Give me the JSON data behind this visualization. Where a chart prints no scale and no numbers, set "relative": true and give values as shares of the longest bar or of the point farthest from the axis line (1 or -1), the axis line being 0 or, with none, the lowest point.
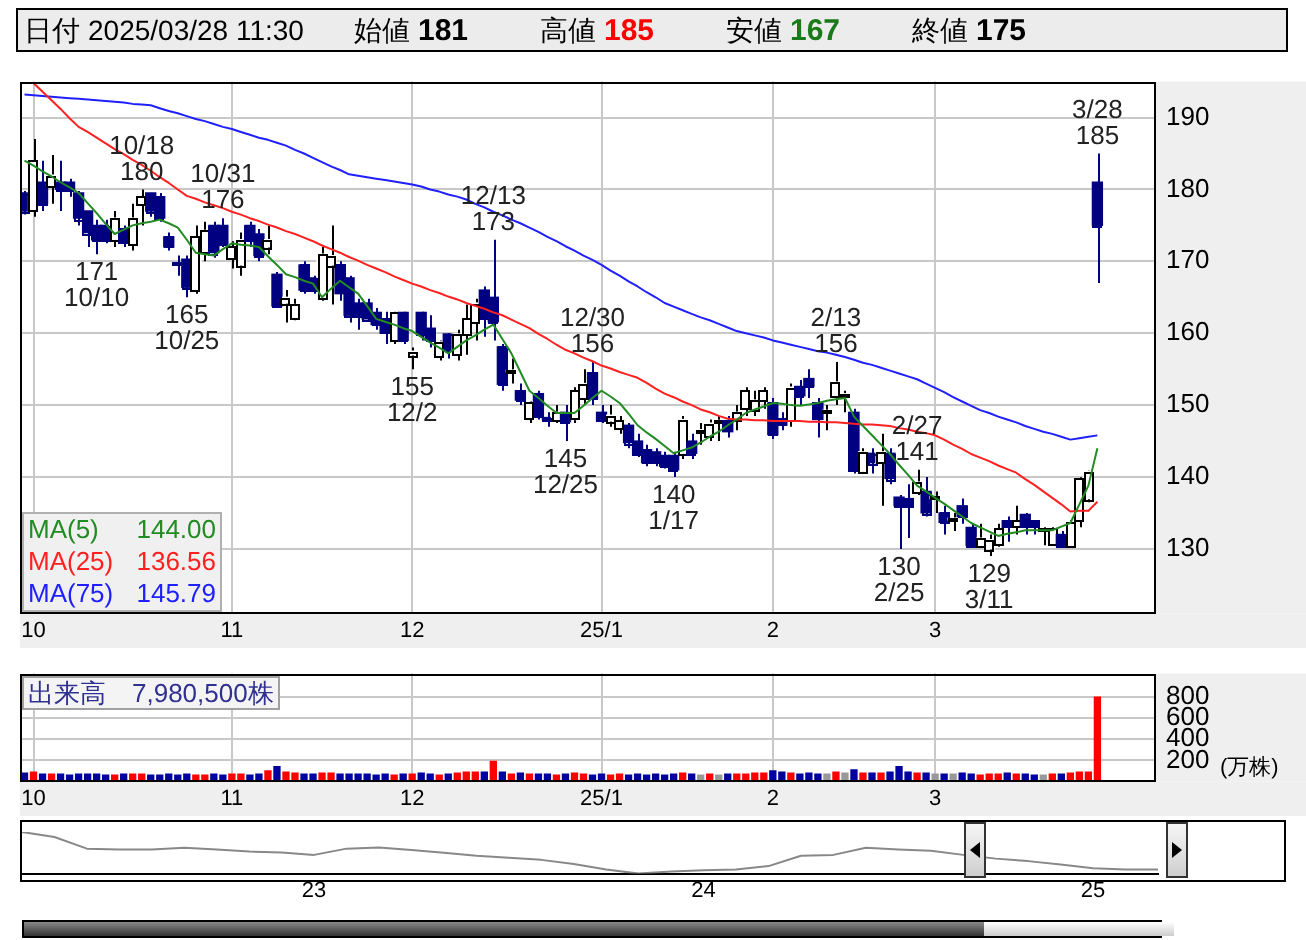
{
  "chart_data": [
    {
      "type": "other",
      "annotations": [
        "日付",
        "2025/03/28 11:30",
        "始値",
        "181",
        "高値",
        "185",
        "安値",
        "167",
        "終値",
        "175"
      ]
    },
    {
      "type": "candlestick",
      "categories": [
        null,
        "10",
        null,
        null,
        null,
        null,
        null,
        null,
        null,
        null,
        null,
        null,
        null,
        null,
        null,
        null,
        null,
        null,
        null,
        null,
        null,
        null,
        null,
        "11",
        null,
        null,
        null,
        null,
        null,
        null,
        null,
        null,
        null,
        null,
        null,
        null,
        null,
        null,
        null,
        null,
        null,
        null,
        null,
        "12",
        null,
        null,
        null,
        null,
        null,
        null,
        null,
        null,
        null,
        null,
        null,
        null,
        null,
        null,
        null,
        null,
        null,
        null,
        null,
        null,
        "25/1",
        null,
        null,
        null,
        null,
        null,
        null,
        null,
        null,
        null,
        null,
        null,
        null,
        null,
        null,
        null,
        null,
        null,
        null,
        "2",
        null,
        null,
        null,
        null,
        null,
        null,
        null,
        null,
        null,
        null,
        null,
        null,
        null,
        null,
        null,
        null,
        null,
        "3",
        null,
        null,
        null,
        null,
        null,
        null,
        null,
        null,
        null,
        null,
        null,
        null,
        null,
        null,
        null,
        null,
        null,
        null
      ],
      "ohlc": [
        [
          179.5,
          179.8,
          176.5,
          177
        ],
        [
          177,
          187,
          176.2,
          184
        ],
        [
          181,
          184,
          177,
          178
        ],
        [
          180.5,
          184.8,
          178,
          182
        ],
        [
          181,
          184,
          177,
          180
        ],
        [
          181,
          181.5,
          179,
          180
        ],
        [
          179.5,
          179.8,
          175,
          176
        ],
        [
          177,
          177,
          172,
          174
        ],
        [
          175,
          175.8,
          171,
          173
        ],
        [
          175,
          175.8,
          172.5,
          173
        ],
        [
          173,
          177,
          172,
          176
        ],
        [
          174.5,
          175,
          172,
          172.5
        ],
        [
          172.5,
          178,
          171.5,
          176
        ],
        [
          178,
          180,
          175,
          179
        ],
        [
          179.5,
          179.5,
          176.2,
          177
        ],
        [
          179,
          179.5,
          175.5,
          176
        ],
        [
          173.4,
          174,
          171.5,
          172
        ],
        [
          169.8,
          170.8,
          168,
          169.5
        ],
        [
          170.3,
          170.8,
          165,
          166.4
        ],
        [
          166,
          175,
          165.5,
          173.4
        ],
        [
          171.2,
          175.5,
          170,
          174.3
        ],
        [
          175,
          175.5,
          170.5,
          171.2
        ],
        [
          175,
          176,
          172,
          172.5
        ],
        [
          170.3,
          172.8,
          169,
          172
        ],
        [
          169.5,
          174,
          168,
          173
        ],
        [
          175,
          175.5,
          172,
          173
        ],
        [
          173.8,
          174.5,
          170,
          170.8
        ],
        [
          172,
          175,
          171,
          173
        ],
        [
          168.2,
          168.5,
          163.5,
          163.8
        ],
        [
          164.2,
          166,
          161.5,
          165
        ],
        [
          162,
          164.8,
          161.8,
          164
        ],
        [
          169.5,
          170,
          165.5,
          166
        ],
        [
          167.7,
          168,
          165.5,
          166
        ],
        [
          165,
          172,
          164.5,
          171
        ],
        [
          169.5,
          175,
          164,
          170.8
        ],
        [
          169.5,
          170,
          164.5,
          165.5
        ],
        [
          167.7,
          168,
          161.5,
          162.5
        ],
        [
          164.2,
          164.8,
          160.5,
          162.5
        ],
        [
          164.2,
          164.8,
          161.8,
          162
        ],
        [
          162.9,
          163.5,
          160.5,
          161.2
        ],
        [
          162,
          163,
          158.5,
          160
        ],
        [
          159,
          163,
          158.5,
          162.9
        ],
        [
          162.9,
          163,
          158.5,
          159
        ],
        [
          157,
          158,
          155,
          157.5
        ],
        [
          162.9,
          163,
          159,
          159.9
        ],
        [
          160.7,
          162.5,
          158,
          159
        ],
        [
          156.8,
          159,
          156.2,
          158.8
        ],
        [
          159.9,
          160,
          156.5,
          157.7
        ],
        [
          157.2,
          160.5,
          156.2,
          159.9
        ],
        [
          159.9,
          164,
          157,
          162
        ],
        [
          161.6,
          164.8,
          159,
          164.2
        ],
        [
          166,
          166.5,
          159.5,
          162
        ],
        [
          165,
          173,
          159,
          161.6
        ],
        [
          158.1,
          158.5,
          152,
          152.9
        ],
        [
          154.6,
          156.5,
          153,
          154.8
        ],
        [
          152,
          153,
          150,
          150.7
        ],
        [
          148.1,
          150.5,
          147.5,
          150.3
        ],
        [
          151.6,
          152,
          148,
          148.5
        ],
        [
          148.1,
          149,
          147,
          148
        ],
        [
          148,
          150,
          147.5,
          149
        ],
        [
          149,
          150,
          145,
          147.7
        ],
        [
          148,
          152.5,
          147.5,
          152
        ],
        [
          151,
          155,
          150,
          153
        ],
        [
          154.5,
          156,
          150,
          151
        ],
        [
          149,
          150,
          147.5,
          147.8
        ],
        [
          147.8,
          150,
          147,
          148.6
        ],
        [
          146.7,
          148.5,
          146,
          147.8
        ],
        [
          147.2,
          147.5,
          144,
          144.8
        ],
        [
          145,
          146,
          142.8,
          143.2
        ],
        [
          143.8,
          144.5,
          141.5,
          142
        ],
        [
          143.5,
          144,
          141.5,
          142
        ],
        [
          143,
          143.5,
          141.2,
          141.5
        ],
        [
          143,
          143.5,
          140,
          141
        ],
        [
          143.3,
          148.5,
          142.5,
          148
        ],
        [
          145,
          146,
          142.5,
          143.3
        ],
        [
          146.3,
          147.5,
          144.5,
          146.3
        ],
        [
          145.8,
          148,
          145,
          147.5
        ],
        [
          147.6,
          148.5,
          145,
          147.6
        ],
        [
          147.8,
          148.5,
          145.5,
          146.3
        ],
        [
          147.8,
          150,
          146.5,
          149
        ],
        [
          149.4,
          152.5,
          148.5,
          152
        ],
        [
          149.4,
          152,
          148.5,
          150.7
        ],
        [
          150.7,
          152.5,
          149.5,
          152
        ],
        [
          150.3,
          151,
          145.3,
          145.9
        ],
        [
          148.1,
          149,
          146.5,
          147.2
        ],
        [
          148,
          153,
          147,
          152.5
        ],
        [
          152.6,
          153.5,
          150,
          151.3
        ],
        [
          153.7,
          155,
          151,
          152.6
        ],
        [
          150.3,
          151,
          145.5,
          148
        ],
        [
          149,
          150,
          146.5,
          149
        ],
        [
          151.3,
          156,
          150,
          153.2
        ],
        [
          151.3,
          152,
          149,
          151.3
        ],
        [
          149,
          149.5,
          140.5,
          140.8
        ],
        [
          140.8,
          144,
          140.5,
          143.5
        ],
        [
          143.3,
          144,
          140.5,
          142
        ],
        [
          142,
          146,
          136,
          143.5
        ],
        [
          143.3,
          144,
          139,
          139.8
        ],
        [
          137.2,
          137.5,
          130,
          136
        ],
        [
          137,
          139,
          131.5,
          136
        ],
        [
          138,
          141,
          137.5,
          139.3
        ],
        [
          138,
          140,
          134.5,
          135
        ],
        [
          137,
          138,
          135,
          137
        ],
        [
          135,
          136,
          132,
          133.7
        ],
        [
          134,
          135,
          132.5,
          134
        ],
        [
          136,
          137,
          133.5,
          134.5
        ],
        [
          133,
          133.5,
          130.3,
          130.5
        ],
        [
          130.5,
          133.5,
          130.3,
          131.5
        ],
        [
          130,
          132,
          129,
          131.3
        ],
        [
          130.5,
          133.5,
          130.3,
          132.8
        ],
        [
          133.9,
          134.5,
          131,
          133
        ],
        [
          133,
          136,
          132,
          133.9
        ],
        [
          134.8,
          135,
          132,
          133.1
        ],
        [
          133.9,
          134,
          132,
          133
        ],
        [
          132.5,
          133,
          130.5,
          132.5
        ],
        [
          130.5,
          133,
          130.5,
          132.8
        ],
        [
          132,
          132.5,
          130.2,
          130.4
        ],
        [
          130.5,
          134,
          130.5,
          133.7
        ],
        [
          133.9,
          140,
          133,
          139.8
        ],
        [
          137,
          140.9,
          136.5,
          140.8
        ],
        [
          181,
          185,
          167,
          175
        ]
      ],
      "colors": [
        "#000080",
        "#ffffff",
        "#000080",
        "#ffffff",
        "#000080",
        "#000080",
        "#000080",
        "#000080",
        "#000080",
        "#000080",
        "#ffffff",
        "#000080",
        "#ffffff",
        "#ffffff",
        "#000080",
        "#000080",
        "#000080",
        "#000080",
        "#000080",
        "#ffffff",
        "#ffffff",
        "#000080",
        "#000080",
        "#ffffff",
        "#ffffff",
        "#000080",
        "#000080",
        "#ffffff",
        "#000080",
        "#ffffff",
        "#ffffff",
        "#000080",
        "#000080",
        "#ffffff",
        "#ffffff",
        "#000080",
        "#000080",
        "#000080",
        "#000080",
        "#000080",
        "#000080",
        "#ffffff",
        "#000080",
        "#ffffff",
        "#000080",
        "#000080",
        "#ffffff",
        "#000080",
        "#ffffff",
        "#ffffff",
        "#ffffff",
        "#000080",
        "#000080",
        "#000080",
        "#ffffff",
        "#000080",
        "#ffffff",
        "#000080",
        "#000080",
        "#ffffff",
        "#000080",
        "#ffffff",
        "#ffffff",
        "#000080",
        "#000080",
        "#ffffff",
        "#ffffff",
        "#000080",
        "#000080",
        "#000080",
        "#000080",
        "#000080",
        "#000080",
        "#ffffff",
        "#000080",
        "#ffffff",
        "#ffffff",
        "#ffffff",
        "#000080",
        "#ffffff",
        "#ffffff",
        "#ffffff",
        "#ffffff",
        "#000080",
        "#000080",
        "#ffffff",
        "#000080",
        "#000080",
        "#000080",
        "#ffffff",
        "#ffffff",
        "#ffffff",
        "#000080",
        "#ffffff",
        "#000080",
        "#ffffff",
        "#000080",
        "#000080",
        "#000080",
        "#ffffff",
        "#000080",
        "#ffffff",
        "#000080",
        "#ffffff",
        "#000080",
        "#000080",
        "#ffffff",
        "#ffffff",
        "#ffffff",
        "#000080",
        "#ffffff",
        "#000080",
        "#000080",
        "#ffffff",
        "#ffffff",
        "#000080",
        "#ffffff",
        "#ffffff",
        "#ffffff",
        "#000080"
      ],
      "series": [
        {
          "type": "line",
          "name": "MA(5) 144.00",
          "color": "#228b22",
          "values": [
            184,
            183.3,
            182.5,
            181.8,
            181,
            180.3,
            179.5,
            178.1,
            176.7,
            175.2,
            173.8,
            174.4,
            175,
            175.3,
            175.5,
            175.8,
            175.3,
            174.7,
            173,
            171.2,
            171,
            170.8,
            171.7,
            172.5,
            172.3,
            172.2,
            172,
            170.7,
            169.5,
            168.2,
            167.8,
            167.3,
            166.9,
            165,
            166.2,
            167.3,
            166.4,
            165.5,
            163.8,
            162,
            161.6,
            161.2,
            160.7,
            160.3,
            159.5,
            158.7,
            158,
            157.2,
            158.1,
            159,
            159.7,
            160.5,
            161.2,
            159.2,
            157.2,
            154.6,
            152,
            151,
            149.9,
            148.9,
            148.9,
            148.9,
            149.9,
            151,
            152,
            151.2,
            150.3,
            148.8,
            147.2,
            146.2,
            145.3,
            144.3,
            143.3,
            143.7,
            144.1,
            144.8,
            145.6,
            146.3,
            147.2,
            148,
            148.9,
            149.4,
            149.8,
            150.3,
            150.2,
            150,
            149.9,
            150.1,
            150.3,
            150.6,
            150.8,
            151,
            148.4,
            147.1,
            145.8,
            144.5,
            143.2,
            141.7,
            140.3,
            138.8,
            138,
            137.1,
            136.3,
            135.4,
            134.5,
            133.6,
            133,
            132.4,
            131.8,
            132.1,
            132.3,
            132.6,
            132.6,
            132.6,
            132.6,
            133.1,
            133.6,
            136.2,
            138.8,
            144.0
          ]
        },
        {
          "type": "line",
          "name": "MA(25) 136.56",
          "color": "#ff2020",
          "values": [
            null,
            194.8,
            193.6,
            192.4,
            191.2,
            189.9,
            188.7,
            188,
            187.2,
            186.4,
            185.6,
            184.9,
            184.1,
            183.4,
            182.6,
            181.7,
            180.9,
            180,
            179.1,
            178.7,
            178.2,
            177.8,
            177.4,
            176.9,
            176.5,
            176,
            175.6,
            175.1,
            174.7,
            174.2,
            173.8,
            173.3,
            172.8,
            172.2,
            171.7,
            171.2,
            170.6,
            170.1,
            169.5,
            169,
            168.5,
            167.9,
            167.4,
            166.9,
            166.5,
            166,
            165.6,
            165.1,
            164.7,
            164.2,
            163.8,
            163.4,
            162.9,
            162.5,
            161.9,
            161.3,
            160.7,
            159.9,
            159.2,
            158.4,
            157.7,
            157.2,
            156.6,
            156.1,
            155.5,
            155.1,
            154.6,
            154.2,
            153.8,
            153.1,
            152.3,
            151.6,
            151.1,
            150.5,
            150,
            149.4,
            149,
            148.5,
            148.1,
            148,
            148,
            147.9,
            147.9,
            147.8,
            147.8,
            147.8,
            147.8,
            147.7,
            147.7,
            147.6,
            147.6,
            147.5,
            147.4,
            147.3,
            147.3,
            147.2,
            147.1,
            146.8,
            146.6,
            146.3,
            146.1,
            145.8,
            145.2,
            144.5,
            143.9,
            143.2,
            142.7,
            142.2,
            141.6,
            141.1,
            140.6,
            139.7,
            138.9,
            138,
            137.1,
            136.2,
            135.2,
            135.3,
            135.3,
            136.56
          ]
        },
        {
          "type": "line",
          "name": "MA(75) 145.79",
          "color": "#2020ff",
          "values": [
            193.2,
            193.1,
            193,
            192.9,
            192.8,
            192.7,
            192.6,
            192.5,
            192.4,
            192.3,
            192.2,
            192.1,
            191.9,
            191.8,
            191.7,
            191.3,
            190.9,
            190.6,
            190.2,
            189.8,
            189.5,
            189.1,
            188.7,
            188.4,
            188,
            187.6,
            187.2,
            186.9,
            186.5,
            186.1,
            185.5,
            185,
            184.4,
            183.8,
            183.2,
            182.7,
            182.1,
            181.9,
            181.7,
            181.5,
            181.3,
            181.1,
            180.9,
            180.7,
            180.4,
            180,
            179.7,
            179.3,
            179,
            178.6,
            178,
            177.5,
            176.9,
            176.4,
            175.8,
            175.3,
            174.7,
            174.1,
            173.4,
            172.8,
            172.1,
            171.5,
            170.8,
            170.2,
            169.5,
            168.7,
            168,
            167.2,
            166.5,
            165.7,
            165,
            164.2,
            163.7,
            163.2,
            162.7,
            162.2,
            161.8,
            161.3,
            160.8,
            160.3,
            160,
            159.7,
            159.4,
            159,
            158.7,
            158.4,
            158.1,
            157.8,
            157.5,
            157.3,
            157,
            156.7,
            156.3,
            155.9,
            155.6,
            155.2,
            154.8,
            154.4,
            154,
            153.6,
            153,
            152.4,
            151.8,
            151.1,
            150.5,
            149.9,
            149.3,
            148.9,
            148.4,
            148,
            147.6,
            147.1,
            146.7,
            146.3,
            146,
            145.6,
            145.2,
            145.4,
            145.6,
            145.79
          ]
        }
      ],
      "ylim": [
        121,
        195
      ],
      "yticks": [
        130,
        140,
        150,
        160,
        170,
        180,
        190
      ],
      "grid": true,
      "legend": "bottom left",
      "marker": "none",
      "annotations": [
        {
          "text": "10/18\n180",
          "y": 180
        },
        {
          "text": "171\n10/10",
          "y": 171
        },
        {
          "text": "10/31\n176",
          "y": 176
        },
        {
          "text": "165\n10/25",
          "y": 165
        },
        {
          "text": "155\n12/2",
          "y": 155
        },
        {
          "text": "12/13\n173",
          "y": 173
        },
        {
          "text": "12/30\n156",
          "y": 156
        },
        {
          "text": "145\n12/25",
          "y": 145
        },
        {
          "text": "140\n1/17",
          "y": 140
        },
        {
          "text": "2/13\n156",
          "y": 156
        },
        {
          "text": "2/27\n141",
          "y": 141
        },
        {
          "text": "130\n2/25",
          "y": 130
        },
        {
          "text": "129\n3/11",
          "y": 129
        },
        {
          "text": "3/28\n185",
          "y": 185
        }
      ]
    },
    {
      "type": "bar",
      "title": "出来高　7,980,500株",
      "ylabel": "(万株)",
      "categories": [
        null,
        "10",
        null,
        null,
        null,
        null,
        null,
        null,
        null,
        null,
        null,
        null,
        null,
        null,
        null,
        null,
        null,
        null,
        null,
        null,
        null,
        null,
        null,
        "11",
        null,
        null,
        null,
        null,
        null,
        null,
        null,
        null,
        null,
        null,
        null,
        null,
        null,
        null,
        null,
        null,
        null,
        null,
        null,
        "12",
        null,
        null,
        null,
        null,
        null,
        null,
        null,
        null,
        null,
        null,
        null,
        null,
        null,
        null,
        null,
        null,
        null,
        null,
        null,
        null,
        "25/1",
        null,
        null,
        null,
        null,
        null,
        null,
        null,
        null,
        null,
        null,
        null,
        null,
        null,
        null,
        null,
        null,
        null,
        null,
        "2",
        null,
        null,
        null,
        null,
        null,
        null,
        null,
        null,
        null,
        null,
        null,
        null,
        null,
        null,
        null,
        null,
        null,
        "3",
        null,
        null,
        null,
        null,
        null,
        null,
        null,
        null,
        null,
        null,
        null,
        null,
        null,
        null,
        null,
        null,
        null,
        null
      ],
      "values": [
        80,
        90,
        70,
        70,
        70,
        60,
        70,
        70,
        70,
        60,
        60,
        70,
        70,
        70,
        60,
        60,
        70,
        60,
        70,
        60,
        60,
        70,
        60,
        70,
        70,
        60,
        70,
        100,
        140,
        90,
        80,
        70,
        70,
        80,
        80,
        70,
        70,
        70,
        70,
        60,
        70,
        60,
        70,
        70,
        80,
        70,
        60,
        70,
        80,
        90,
        90,
        90,
        190,
        90,
        70,
        80,
        70,
        70,
        70,
        60,
        70,
        80,
        70,
        60,
        70,
        60,
        70,
        60,
        70,
        60,
        70,
        60,
        70,
        80,
        70,
        60,
        70,
        60,
        70,
        70,
        70,
        80,
        80,
        100,
        90,
        80,
        70,
        80,
        70,
        70,
        90,
        80,
        110,
        80,
        80,
        80,
        90,
        140,
        90,
        80,
        80,
        70,
        70,
        70,
        80,
        70,
        60,
        70,
        70,
        80,
        70,
        70,
        60,
        60,
        70,
        70,
        80,
        90,
        90,
        798
      ],
      "colors": [
        "#0000a0",
        "#ff0000",
        "#0000a0",
        "#ff0000",
        "#0000a0",
        "#0000a0",
        "#0000a0",
        "#0000a0",
        "#0000a0",
        "#0000a0",
        "#ff0000",
        "#0000a0",
        "#ff0000",
        "#ff0000",
        "#0000a0",
        "#0000a0",
        "#0000a0",
        "#0000a0",
        "#0000a0",
        "#ff0000",
        "#ff0000",
        "#0000a0",
        "#0000a0",
        "#ff0000",
        "#ff0000",
        "#0000a0",
        "#0000a0",
        "#ff0000",
        "#0000a0",
        "#ff0000",
        "#ff0000",
        "#0000a0",
        "#0000a0",
        "#ff0000",
        "#ff0000",
        "#0000a0",
        "#0000a0",
        "#0000a0",
        "#0000a0",
        "#0000a0",
        "#0000a0",
        "#ff0000",
        "#0000a0",
        "#ff0000",
        "#0000a0",
        "#0000a0",
        "#ff0000",
        "#0000a0",
        "#ff0000",
        "#ff0000",
        "#ff0000",
        "#0000a0",
        "#ff0000",
        "#0000a0",
        "#ff0000",
        "#0000a0",
        "#ff0000",
        "#0000a0",
        "#0000a0",
        "#ff0000",
        "#0000a0",
        "#ff0000",
        "#ff0000",
        "#0000a0",
        "#0000a0",
        "#ff0000",
        "#ff0000",
        "#0000a0",
        "#0000a0",
        "#0000a0",
        "#0000a0",
        "#0000a0",
        "#0000a0",
        "#ff0000",
        "#0000a0",
        "#999999",
        "#ff0000",
        "#999999",
        "#0000a0",
        "#ff0000",
        "#ff0000",
        "#ff0000",
        "#ff0000",
        "#0000a0",
        "#0000a0",
        "#ff0000",
        "#0000a0",
        "#0000a0",
        "#0000a0",
        "#999999",
        "#ff0000",
        "#999999",
        "#0000a0",
        "#ff0000",
        "#0000a0",
        "#ff0000",
        "#0000a0",
        "#0000a0",
        "#0000a0",
        "#ff0000",
        "#0000a0",
        "#999999",
        "#0000a0",
        "#999999",
        "#0000a0",
        "#0000a0",
        "#ff0000",
        "#ff0000",
        "#ff0000",
        "#0000a0",
        "#ff0000",
        "#0000a0",
        "#0000a0",
        "#999999",
        "#ff0000",
        "#0000a0",
        "#ff0000",
        "#ff0000",
        "#ff0000",
        "#ff0000"
      ],
      "ylim": [
        0,
        1020
      ],
      "yticks": [
        200,
        400,
        600,
        800
      ],
      "grid": true
    },
    {
      "type": "line",
      "relative": true,
      "color": "#888888",
      "marker": "none",
      "categories": [
        null,
        null,
        null,
        null,
        null,
        null,
        null,
        null,
        null,
        "23",
        null,
        null,
        null,
        null,
        null,
        null,
        null,
        null,
        null,
        null,
        null,
        "24",
        null,
        null,
        null,
        null,
        null,
        null,
        null,
        null,
        null,
        null,
        null,
        "25",
        null,
        null
      ],
      "values": [
        1.0,
        0.88,
        0.6,
        0.58,
        0.58,
        0.62,
        0.58,
        0.53,
        0.51,
        0.45,
        0.6,
        0.63,
        0.57,
        0.5,
        0.43,
        0.38,
        0.33,
        0.23,
        0.1,
        0.0,
        0.05,
        0.08,
        0.1,
        0.18,
        0.43,
        0.45,
        0.62,
        0.58,
        0.55,
        0.45,
        0.36,
        0.3,
        0.22,
        0.13,
        0.1,
        0.1
      ]
    }
  ]
}
